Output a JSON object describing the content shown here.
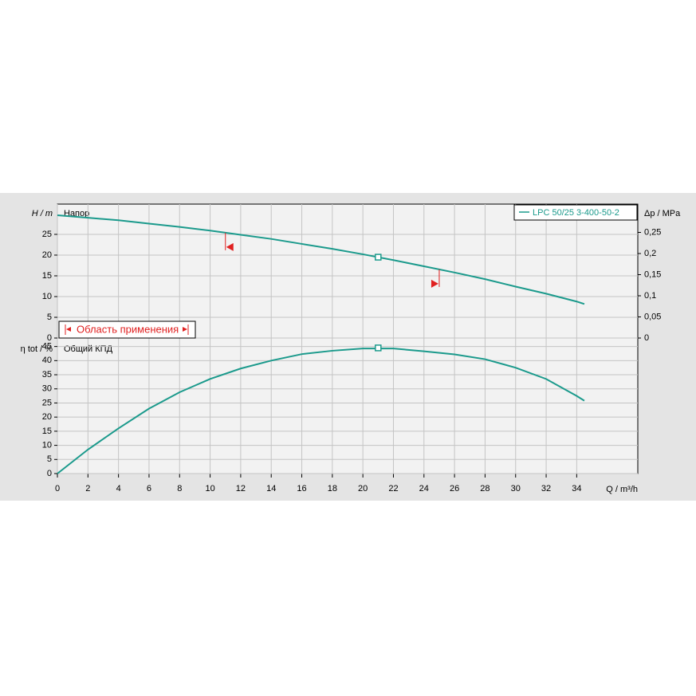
{
  "chart_data": [
    {
      "type": "line",
      "label": "Напор",
      "y_label": "H / m",
      "y2_label": "Δp / MPa",
      "x": [
        0,
        2,
        4,
        6,
        8,
        10,
        12,
        14,
        16,
        18,
        20,
        22,
        24,
        26,
        28,
        30,
        32,
        34,
        34.5
      ],
      "series": [
        {
          "name": "LPC 50/25 3-400-50-2",
          "color": "#1b9a8c",
          "values": [
            29.6,
            29.0,
            28.4,
            27.6,
            26.8,
            25.9,
            24.9,
            23.9,
            22.7,
            21.5,
            20.2,
            18.8,
            17.3,
            15.8,
            14.2,
            12.4,
            10.7,
            8.8,
            8.2
          ]
        }
      ],
      "xlim": [
        0,
        38
      ],
      "ylim": [
        0,
        32.3
      ],
      "yticks": [
        0,
        5,
        10,
        15,
        20,
        25
      ],
      "y2lim": [
        0,
        0.317
      ],
      "y2ticks": [
        0,
        {
          "value": 0.05,
          "label": "0,05"
        },
        {
          "value": 0.1,
          "label": "0,1"
        },
        {
          "value": 0.15,
          "label": "0,15"
        },
        {
          "value": 0.2,
          "label": "0,2"
        },
        {
          "value": 0.25,
          "label": "0,25"
        }
      ],
      "operating_point": {
        "x": 21,
        "y": 19.5
      },
      "application_range": {
        "label": "Область применения",
        "values": [
          11,
          25
        ],
        "color": "#e02020"
      },
      "grid": true
    },
    {
      "type": "line",
      "label": "Общий КПД",
      "y_label": "η tot / %",
      "x_label": "Q / m³/h",
      "x": [
        0,
        2,
        4,
        6,
        8,
        10,
        12,
        14,
        16,
        18,
        20,
        22,
        24,
        26,
        28,
        30,
        32,
        34,
        34.5
      ],
      "series": [
        {
          "name": "LPC 50/25 3-400-50-2",
          "color": "#1b9a8c",
          "values": [
            0,
            8.5,
            16,
            23,
            28.8,
            33.5,
            37.2,
            40,
            42.3,
            43.5,
            44.3,
            44.3,
            43.3,
            42.2,
            40.5,
            37.5,
            33.5,
            27.5,
            25.8
          ]
        }
      ],
      "xlim": [
        0,
        38
      ],
      "xticks": [
        0,
        2,
        4,
        6,
        8,
        10,
        12,
        14,
        16,
        18,
        20,
        22,
        24,
        26,
        28,
        30,
        32,
        34
      ],
      "ylim": [
        0,
        48
      ],
      "yticks": [
        0,
        5,
        10,
        15,
        20,
        25,
        30,
        35,
        40,
        45
      ],
      "operating_point": {
        "x": 21,
        "y": 44.5
      },
      "grid": true
    }
  ]
}
